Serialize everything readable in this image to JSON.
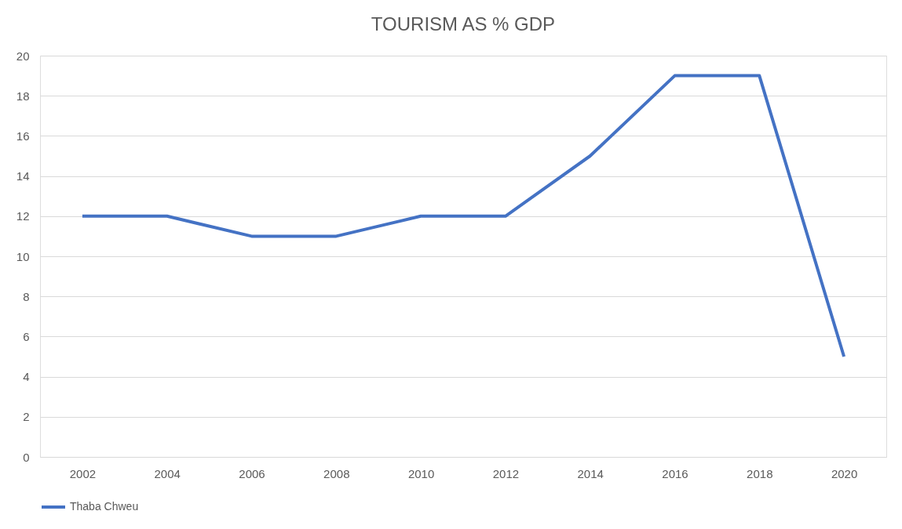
{
  "chart_data": {
    "type": "line",
    "title": "TOURISM AS % GDP",
    "categories": [
      "2002",
      "2004",
      "2006",
      "2008",
      "2010",
      "2012",
      "2014",
      "2016",
      "2018",
      "2020"
    ],
    "series": [
      {
        "name": "Thaba Chweu",
        "color": "#4472c4",
        "values": [
          12,
          12,
          11,
          11,
          12,
          12,
          15,
          19,
          19,
          5
        ]
      }
    ],
    "ylim": [
      0,
      20
    ],
    "yticks": [
      0,
      2,
      4,
      6,
      8,
      10,
      12,
      14,
      16,
      18,
      20
    ],
    "grid": "y",
    "legend": "bottom",
    "marker": "none",
    "line_style": "solid"
  }
}
